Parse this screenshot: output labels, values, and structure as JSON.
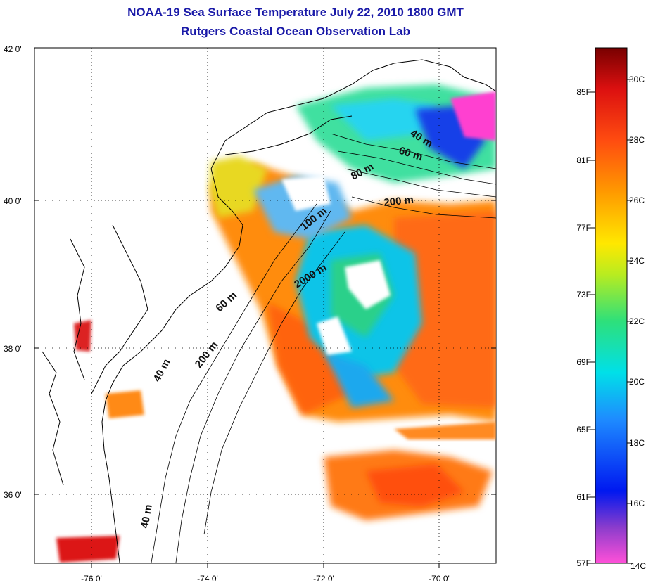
{
  "title": {
    "line1": "NOAA-19 Sea Surface Temperature July 22, 2010 1800 GMT",
    "line2": "Rutgers Coastal Ocean Observation Lab"
  },
  "map": {
    "lat_labels": [
      "42 0'",
      "40 0'",
      "38 0'",
      "36 0'"
    ],
    "lon_labels": [
      "-76 0'",
      "-74 0'",
      "-72 0'",
      "-70 0'"
    ],
    "contour_labels": [
      "40 m",
      "60 m",
      "80 m",
      "200 m",
      "100 m",
      "2000 m",
      "60 m",
      "200 m",
      "40 m",
      "40 m"
    ]
  },
  "colorbar": {
    "fahrenheit_labels": [
      "85F",
      "81F",
      "77F",
      "73F",
      "69F",
      "65F",
      "61F",
      "57F"
    ],
    "celsius_labels": [
      "30C",
      "28C",
      "26C",
      "24C",
      "22C",
      "20C",
      "18C",
      "16C",
      "14C"
    ],
    "color_stops": [
      "#ff50d8",
      "#8a3ccc",
      "#0018f0",
      "#1e8cff",
      "#00e0e8",
      "#2ee07a",
      "#b8ec20",
      "#ffe800",
      "#ff9a00",
      "#ff4c10",
      "#dc1010",
      "#780000"
    ]
  }
}
